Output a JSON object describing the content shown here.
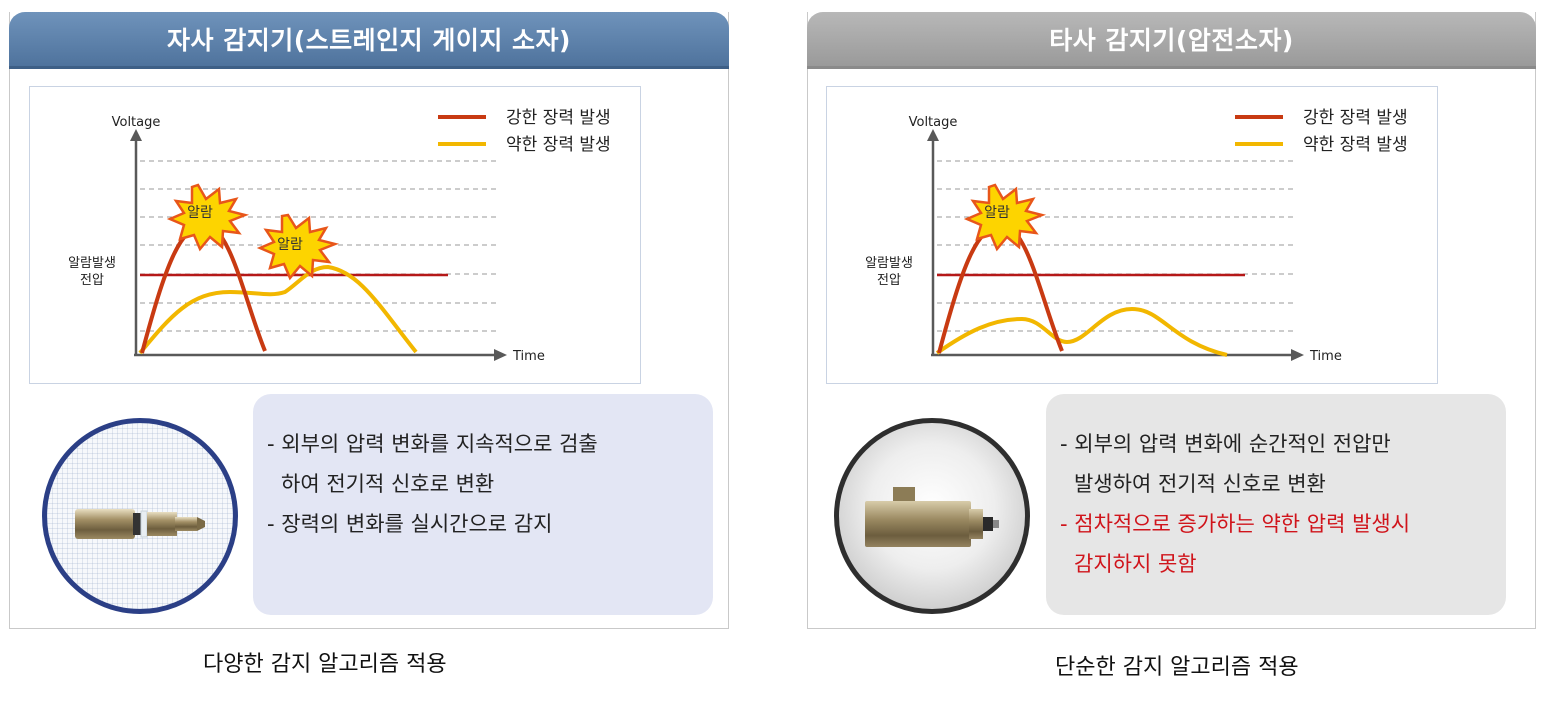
{
  "left_panel": {
    "title": "자사 감지기(스트레인지 게이지 소자)",
    "legend": [
      {
        "label": "강한 장력 발생",
        "color": "#c83a12"
      },
      {
        "label": "약한 장력 발생",
        "color": "#f2b700"
      }
    ],
    "chart": {
      "ylabel": "Voltage",
      "xlabel": "Time",
      "alarm_threshold_label_line1": "알람발생",
      "alarm_threshold_label_line2": "전압",
      "alarm_bursts": [
        "알람",
        "알람"
      ]
    },
    "bullets": [
      {
        "line1": "- 외부의 압력 변화를 지속적으로 검출",
        "line2": "하여  전기적 신호로 변환"
      },
      {
        "line1": "- 장력의 변화를 실시간으로 감지",
        "line2": ""
      }
    ],
    "caption": "다양한 감지 알고리즘 적용"
  },
  "right_panel": {
    "title": "타사 감지기(압전소자)",
    "legend": [
      {
        "label": "강한 장력 발생",
        "color": "#c83a12"
      },
      {
        "label": "약한 장력 발생",
        "color": "#f2b700"
      }
    ],
    "chart": {
      "ylabel": "Voltage",
      "xlabel": "Time",
      "alarm_threshold_label_line1": "알람발생",
      "alarm_threshold_label_line2": "전압",
      "alarm_bursts": [
        "알람"
      ]
    },
    "bullets": [
      {
        "line1": "- 외부의 압력 변화에 순간적인 전압만",
        "line2": "발생하여 전기적 신호로 변환",
        "highlight": false
      },
      {
        "line1": "- 점차적으로 증가하는 약한 압력 발생시",
        "line2": "감지하지 못함",
        "highlight": true
      }
    ],
    "caption": "단순한 감지 알고리즘 적용"
  },
  "colors": {
    "left_header": "#5b7fa8",
    "right_header": "#a8a8a8",
    "threshold_line": "#b51818",
    "highlight_text": "#d0141b"
  }
}
